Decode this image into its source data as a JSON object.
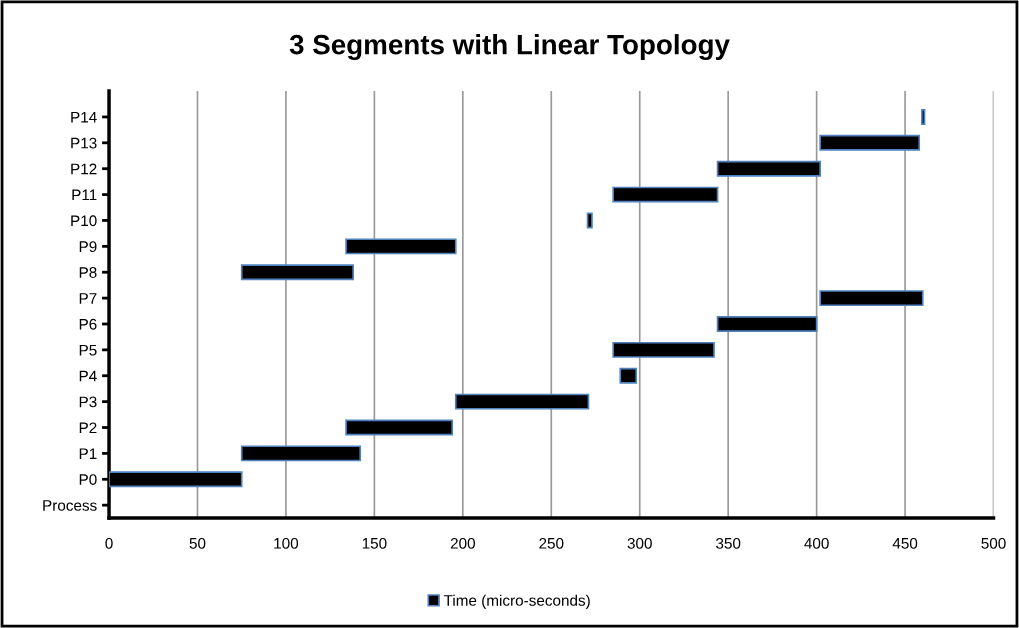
{
  "chart_data": {
    "type": "bar",
    "orientation": "horizontal",
    "title": "3 Segments with Linear Topology",
    "categories": [
      "P14",
      "P13",
      "P12",
      "P11",
      "P10",
      "P9",
      "P8",
      "P7",
      "P6",
      "P5",
      "P4",
      "P3",
      "P2",
      "P1",
      "P0",
      "Process"
    ],
    "series": [
      {
        "name": "Time (micro-seconds)",
        "color": "#000000",
        "base": [
          459.5,
          402,
          344,
          285,
          270.5,
          134,
          75,
          402,
          344,
          285,
          289,
          196,
          134,
          75,
          0,
          null
        ],
        "values": [
          1.5,
          56,
          58,
          59,
          2.5,
          62,
          63,
          58,
          56,
          57,
          9,
          75,
          60,
          67,
          75,
          null
        ]
      }
    ],
    "xlim": [
      0,
      500
    ],
    "xticks": [
      0,
      50,
      100,
      150,
      200,
      250,
      300,
      350,
      400,
      450,
      500
    ],
    "grid": "x",
    "legend": "bottom"
  }
}
